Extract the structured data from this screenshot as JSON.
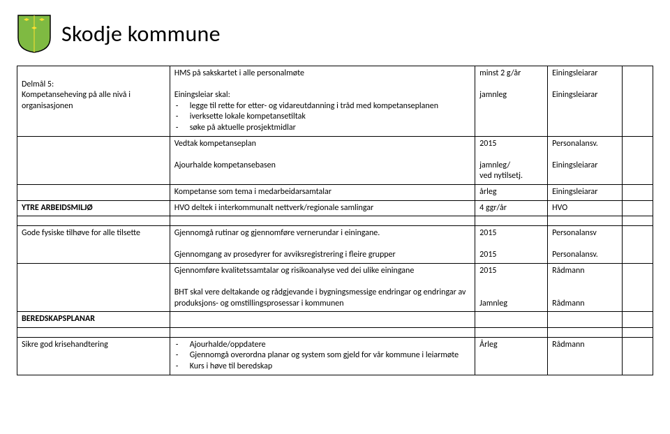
{
  "header": {
    "org_name": "Skodje kommune"
  },
  "table": {
    "rows": [
      {
        "c1_lines": [
          "",
          "Delmål 5:",
          "Kompetanseheving på alle nivå i organisasjonen"
        ],
        "c2_tophead": "HMS på sakskartet i alle personalmøte",
        "c2_sep": true,
        "c2_sub_lead": "Einingsleiar skal:",
        "c2_bullets": [
          "legge til rette for etter- og vidareutdanning i tråd med kompetanseplanen",
          "iverksette lokale kompetansetiltak",
          "søke på aktuelle prosjektmidlar"
        ],
        "c3_lines": [
          "minst 2 g/år",
          "",
          "jamnleg"
        ],
        "c4_lines": [
          "Einingsleiarar",
          "",
          "Einingsleiarar"
        ],
        "c5": ""
      },
      {
        "c1": "",
        "c2_tophead": "Vedtak kompetanseplan",
        "c2_sep": true,
        "c2_para": "Ajourhalde kompetansebasen",
        "c3_lines": [
          "2015",
          "",
          "jamnleg/",
          "ved nytilsetj."
        ],
        "c4_lines": [
          "Personalansv.",
          "",
          "Einingsleiarar"
        ],
        "c5": ""
      },
      {
        "c1": "",
        "c2": "Kompetanse som tema i medarbeidarsamtalar",
        "c3": "årleg",
        "c4": "Einingsleiarar",
        "c5": ""
      },
      {
        "c1_head": "YTRE ARBEIDSMILJØ",
        "c2": "HVO deltek i interkommunalt nettverk/regionale samlingar",
        "c3": "4 ggr/år",
        "c4": "HVO",
        "c5": "",
        "bottom_label": true
      },
      {
        "spacer": true
      },
      {
        "c1": "Gode fysiske tilhøve for alle tilsette",
        "c2_tophead": "Gjennomgå rutinar og gjennomføre vernerundar i einingane.",
        "c2_sep": true,
        "c2_para": "Gjennomgang av prosedyrer for avviksregistrering i fleire grupper",
        "c3_lines": [
          "2015",
          "",
          "2015"
        ],
        "c4_lines": [
          "Personalansv",
          "",
          "Personalansv."
        ],
        "c5": ""
      },
      {
        "c1": "",
        "c2_tophead": "Gjennomføre kvalitetssamtalar og  risikoanalyse ved dei ulike einingane",
        "c2_sep": true,
        "c2_para": "BHT skal vere deltakande og rådgjevande i bygningsmessige endringar og endringar av produksjons- og omstillingsprosessar i kommunen",
        "c3_lines": [
          "2015",
          "",
          "",
          "Jamnleg"
        ],
        "c4_lines": [
          "Rådmann",
          "",
          "",
          "Rådmann"
        ],
        "c5": ""
      },
      {
        "c1_head": "BEREDSKAPSPLANAR",
        "c2": "",
        "c3": "",
        "c4": "",
        "c5": ""
      },
      {
        "spacer": true
      },
      {
        "c1": "Sikre god krisehandtering",
        "c2_bullets": [
          "Ajourhalde/oppdatere",
          "Gjennomgå overordna planar og system som gjeld for vår kommune i leiarmøte",
          "Kurs i høve til beredskap"
        ],
        "c3": "Årleg",
        "c4": "Rådmann",
        "c5": ""
      }
    ]
  }
}
